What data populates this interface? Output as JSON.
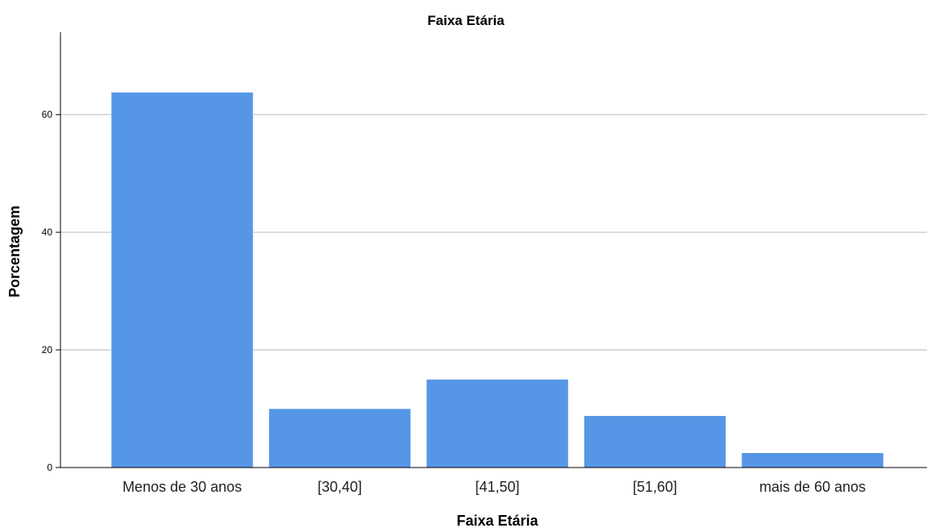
{
  "chart_data": {
    "type": "bar",
    "title": "Faixa Etária",
    "xlabel": "Faixa Etária",
    "ylabel": "Porcentagem",
    "categories": [
      "Menos de 30 anos",
      "[30,40]",
      "[41,50]",
      "[51,60]",
      "mais de 60 anos"
    ],
    "values": [
      63.8,
      10.0,
      15.0,
      8.8,
      2.5
    ],
    "ylim": [
      0,
      74
    ],
    "yticks": [
      0,
      20,
      40,
      60
    ],
    "ytick_labels": [
      "0",
      "20",
      "40",
      "60"
    ],
    "grid": true,
    "bar_color": "#5596e6",
    "grid_color": "#c8c8c8"
  }
}
